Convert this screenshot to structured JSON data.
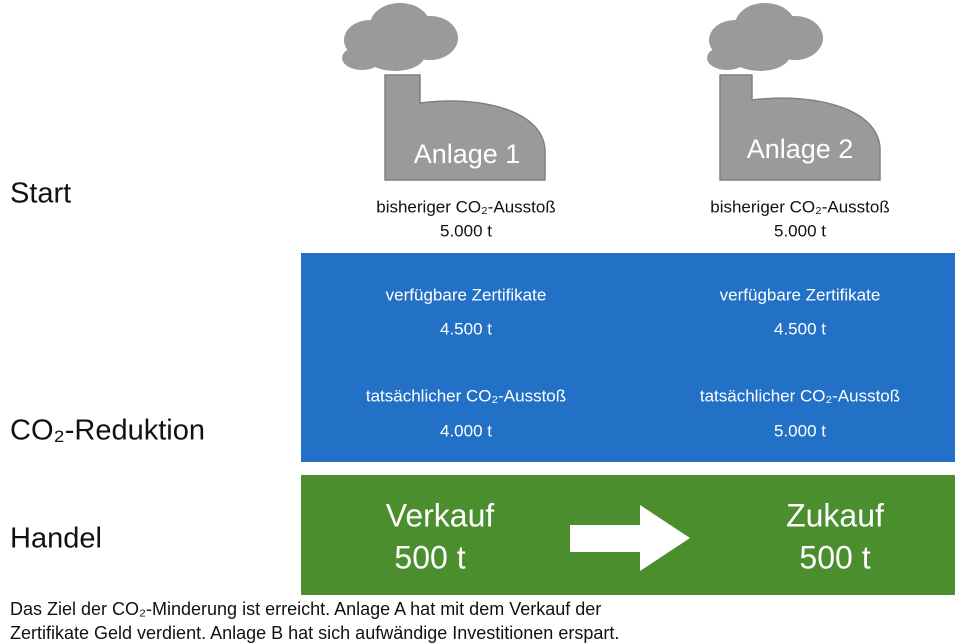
{
  "rows": [
    "Start",
    "CO₂-Reduktion",
    "Handel"
  ],
  "plants": [
    {
      "name": "Anlage 1",
      "previous_label": "bisheriger CO₂-Ausstoß",
      "previous": "5.000 t",
      "available_label": "verfügbare Zertifikate",
      "available": "4.500 t",
      "actual_label": "tatsächlicher CO₂-Ausstoß",
      "actual": "4.000 t",
      "trade_label": "Verkauf",
      "trade": "500 t"
    },
    {
      "name": "Anlage 2",
      "previous_label": "bisheriger CO₂-Ausstoß",
      "previous": "5.000 t",
      "available_label": "verfügbare Zertifikate",
      "available": "4.500 t",
      "actual_label": "tatsächlicher CO₂-Ausstoß",
      "actual": "5.000 t",
      "trade_label": "Zukauf",
      "trade": "500 t"
    }
  ],
  "footer": [
    "Das Ziel der CO₂-Minderung ist erreicht. Anlage A hat mit dem Verkauf der",
    "Zertifikate Geld verdient. Anlage B hat sich aufwändige Investitionen erspart."
  ]
}
